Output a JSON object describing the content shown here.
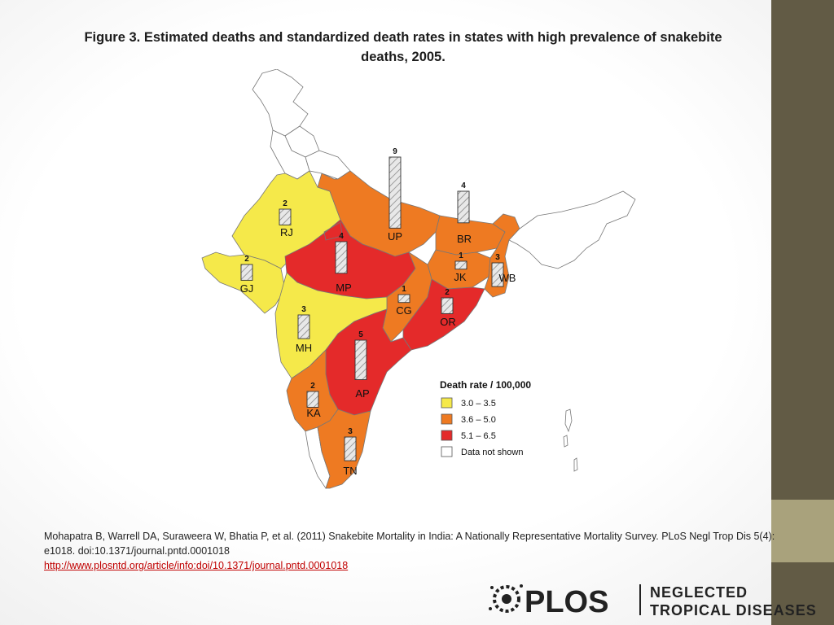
{
  "title": "Figure 3. Estimated deaths and standardized death rates in states with high prevalence of snakebite deaths, 2005.",
  "legend": {
    "title": "Death rate / 100,000",
    "items": [
      {
        "label": "3.0 – 3.5",
        "color": "#f5e94a"
      },
      {
        "label": "3.6 – 5.0",
        "color": "#ee7a22"
      },
      {
        "label": "5.1 – 6.5",
        "color": "#e42a2a"
      },
      {
        "label": "Data not shown",
        "color": "#ffffff"
      }
    ]
  },
  "states": [
    {
      "code": "RJ",
      "deaths": "2",
      "rate_band": "3.0 – 3.5"
    },
    {
      "code": "GJ",
      "deaths": "2",
      "rate_band": "3.0 – 3.5"
    },
    {
      "code": "MP",
      "deaths": "4",
      "rate_band": "5.1 – 6.5"
    },
    {
      "code": "UP",
      "deaths": "9",
      "rate_band": "3.6 – 5.0"
    },
    {
      "code": "BR",
      "deaths": "4",
      "rate_band": "3.6 – 5.0"
    },
    {
      "code": "JK",
      "deaths": "1",
      "rate_band": "3.6 – 5.0"
    },
    {
      "code": "WB",
      "deaths": "3",
      "rate_band": "3.6 – 5.0"
    },
    {
      "code": "CG",
      "deaths": "1",
      "rate_band": "3.6 – 5.0"
    },
    {
      "code": "OR",
      "deaths": "2",
      "rate_band": "5.1 – 6.5"
    },
    {
      "code": "MH",
      "deaths": "3",
      "rate_band": "3.0 – 3.5"
    },
    {
      "code": "AP",
      "deaths": "5",
      "rate_band": "5.1 – 6.5"
    },
    {
      "code": "KA",
      "deaths": "2",
      "rate_band": "3.6 – 5.0"
    },
    {
      "code": "TN",
      "deaths": "3",
      "rate_band": "3.6 – 5.0"
    }
  ],
  "citation": {
    "text": "Mohapatra B, Warrell DA, Suraweera W, Bhatia P, et al. (2011) Snakebite Mortality in India: A Nationally Representative Mortality Survey. PLoS Negl Trop Dis 5(4): e1018. doi:10.1371/journal.pntd.0001018",
    "link": "http://www.plosntd.org/article/info:doi/10.1371/journal.pntd.0001018"
  },
  "logo": {
    "brand": "PLOS",
    "line1": "NEGLECTED",
    "line2": "TROPICAL DISEASES"
  }
}
